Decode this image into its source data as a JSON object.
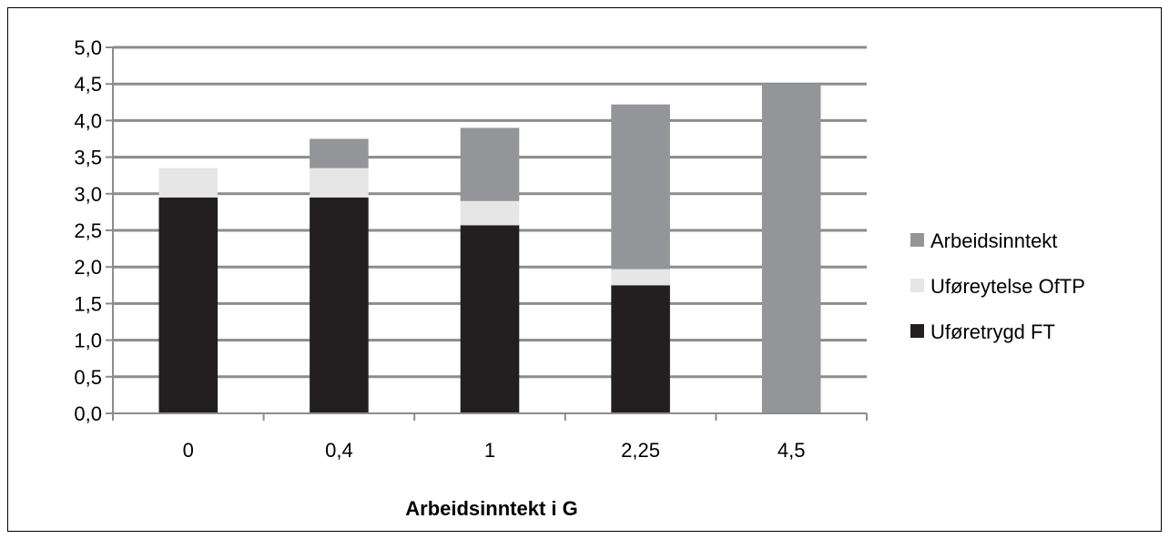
{
  "chart_data": {
    "type": "bar",
    "stacked": true,
    "title": "",
    "xlabel": "Arbeidsinntekt i G",
    "ylabel": "",
    "categories": [
      "0",
      "0,4",
      "1",
      "2,25",
      "4,5"
    ],
    "ylim": [
      0,
      5
    ],
    "yticks": [
      "0,0",
      "0,5",
      "1,0",
      "1,5",
      "2,0",
      "2,5",
      "3,0",
      "3,5",
      "4,0",
      "4,5",
      "5,0"
    ],
    "grid": true,
    "legend_position": "right",
    "series": [
      {
        "name": "Uføretrygd FT",
        "color": "#231f20",
        "values": [
          2.95,
          2.95,
          2.57,
          1.75,
          0
        ]
      },
      {
        "name": "Uføreytelse OfTP",
        "color": "#e6e6e6",
        "values": [
          0.4,
          0.4,
          0.33,
          0.22,
          0
        ]
      },
      {
        "name": "Arbeidsinntekt",
        "color": "#939598",
        "values": [
          0,
          0.4,
          1.0,
          2.25,
          4.5
        ]
      }
    ],
    "legend_order": [
      2,
      1,
      0
    ]
  }
}
